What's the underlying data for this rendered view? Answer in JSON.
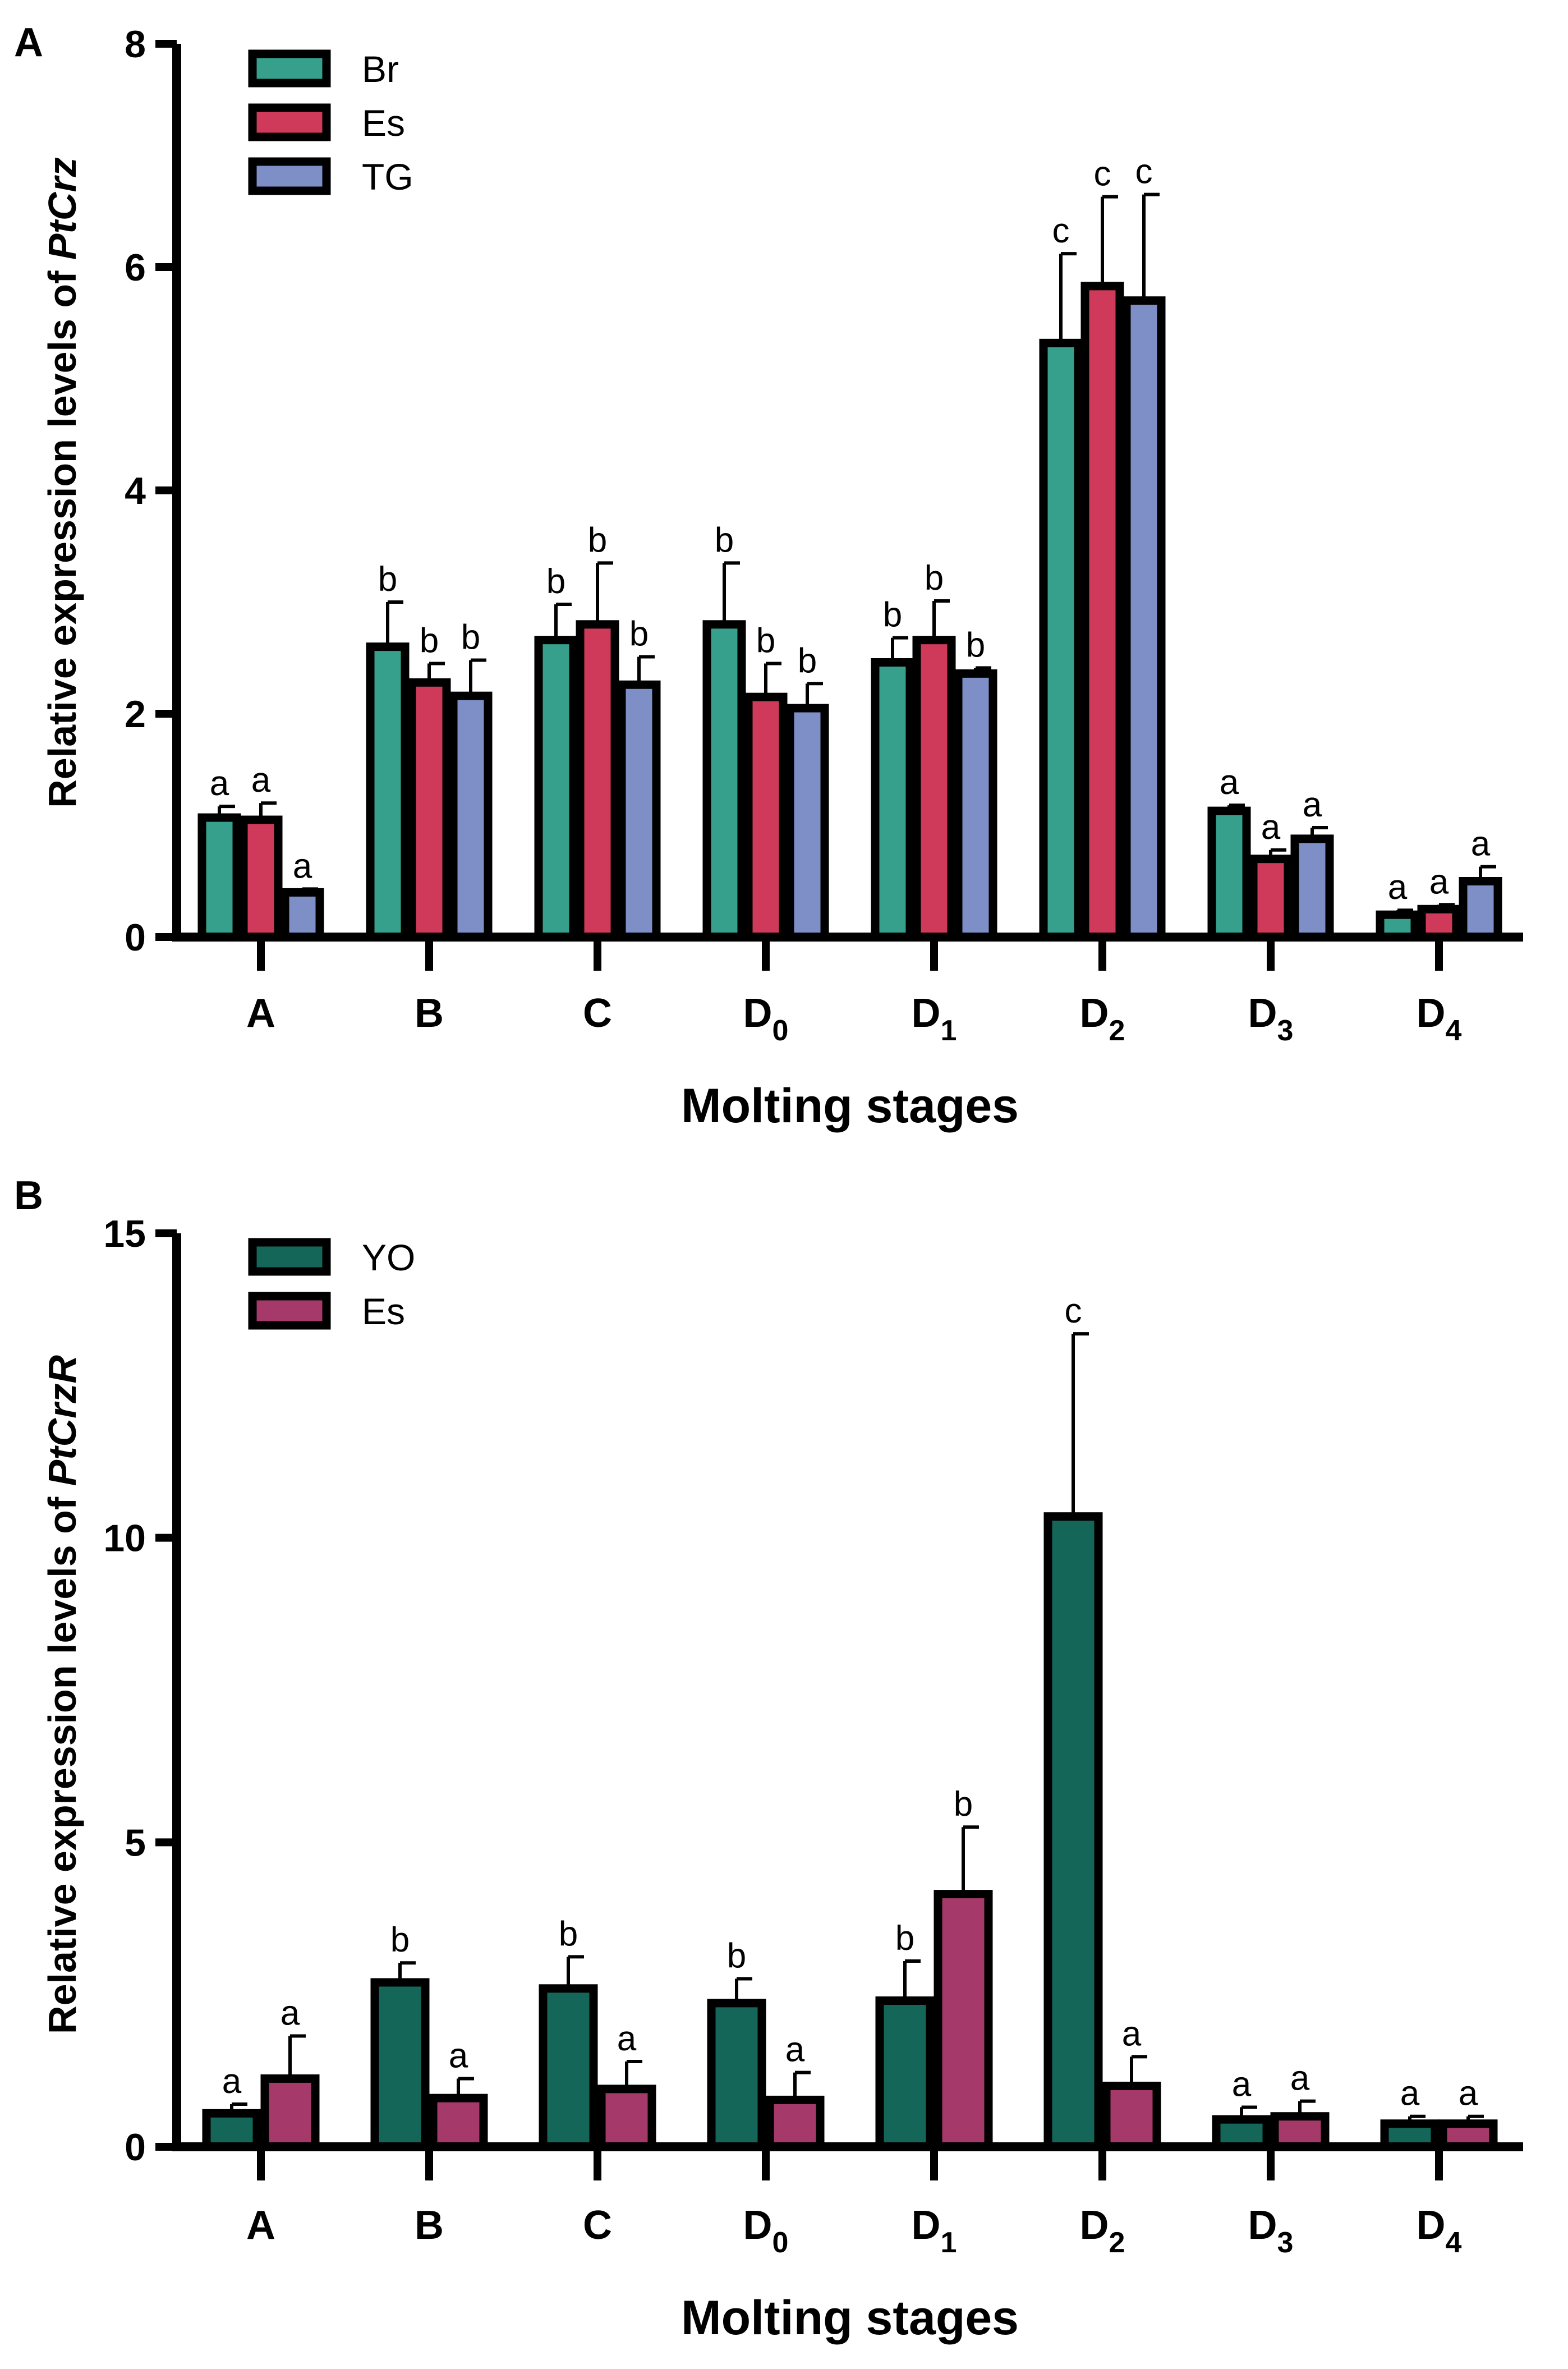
{
  "chart_data": [
    {
      "panel_label": "A",
      "type": "bar",
      "title": "",
      "xlabel": "Molting stages",
      "ylabel_prefix": "Relative expression levels of ",
      "ylabel_gene": "PtCrz",
      "ylim": [
        0,
        8
      ],
      "yticks": [
        0,
        2,
        4,
        6,
        8
      ],
      "grid": false,
      "legend_position": "top-left",
      "categories": [
        {
          "base": "A",
          "sub": ""
        },
        {
          "base": "B",
          "sub": ""
        },
        {
          "base": "C",
          "sub": ""
        },
        {
          "base": "D",
          "sub": "0"
        },
        {
          "base": "D",
          "sub": "1"
        },
        {
          "base": "D",
          "sub": "2"
        },
        {
          "base": "D",
          "sub": "3"
        },
        {
          "base": "D",
          "sub": "4"
        }
      ],
      "series": [
        {
          "name": "Br",
          "color": "#36a08c",
          "values": [
            1.07,
            2.6,
            2.66,
            2.8,
            2.46,
            5.32,
            1.13,
            0.2
          ],
          "errors": [
            0.1,
            0.4,
            0.32,
            0.55,
            0.22,
            0.8,
            0.05,
            0.04
          ],
          "letters": [
            "a",
            "b",
            "b",
            "b",
            "b",
            "c",
            "a",
            "a"
          ]
        },
        {
          "name": "Es",
          "color": "#cf3a5a",
          "values": [
            1.05,
            2.28,
            2.8,
            2.15,
            2.66,
            5.83,
            0.7,
            0.25
          ],
          "errors": [
            0.15,
            0.17,
            0.55,
            0.3,
            0.35,
            0.8,
            0.08,
            0.04
          ],
          "letters": [
            "a",
            "b",
            "b",
            "b",
            "b",
            "c",
            "a",
            "a"
          ]
        },
        {
          "name": "TG",
          "color": "#7d8fc6",
          "values": [
            0.4,
            2.16,
            2.26,
            2.05,
            2.36,
            5.7,
            0.88,
            0.5
          ],
          "errors": [
            0.03,
            0.32,
            0.25,
            0.22,
            0.05,
            0.95,
            0.1,
            0.13
          ],
          "letters": [
            "a",
            "b",
            "b",
            "b",
            "b",
            "c",
            "a",
            "a"
          ]
        }
      ]
    },
    {
      "panel_label": "B",
      "type": "bar",
      "title": "",
      "xlabel": "Molting stages",
      "ylabel_prefix": "Relative expression levels of ",
      "ylabel_gene": "PtCrzR",
      "ylim": [
        0,
        15
      ],
      "yticks": [
        0,
        5,
        10,
        15
      ],
      "grid": false,
      "legend_position": "top-left",
      "categories": [
        {
          "base": "A",
          "sub": ""
        },
        {
          "base": "B",
          "sub": ""
        },
        {
          "base": "C",
          "sub": ""
        },
        {
          "base": "D",
          "sub": "0"
        },
        {
          "base": "D",
          "sub": "1"
        },
        {
          "base": "D",
          "sub": "2"
        },
        {
          "base": "D",
          "sub": "3"
        },
        {
          "base": "D",
          "sub": "4"
        }
      ],
      "series": [
        {
          "name": "YO",
          "color": "#146658",
          "values": [
            0.55,
            2.7,
            2.6,
            2.36,
            2.4,
            10.35,
            0.45,
            0.38
          ],
          "errors": [
            0.15,
            0.32,
            0.52,
            0.4,
            0.65,
            3.0,
            0.2,
            0.12
          ],
          "letters": [
            "a",
            "b",
            "b",
            "b",
            "b",
            "c",
            "a",
            "a"
          ]
        },
        {
          "name": "Es",
          "color": "#a4396a",
          "values": [
            1.12,
            0.8,
            0.95,
            0.77,
            4.15,
            1.0,
            0.5,
            0.38
          ],
          "errors": [
            0.7,
            0.32,
            0.45,
            0.45,
            1.1,
            0.48,
            0.25,
            0.12
          ],
          "letters": [
            "a",
            "a",
            "a",
            "a",
            "b",
            "a",
            "a",
            "a"
          ]
        }
      ]
    }
  ]
}
